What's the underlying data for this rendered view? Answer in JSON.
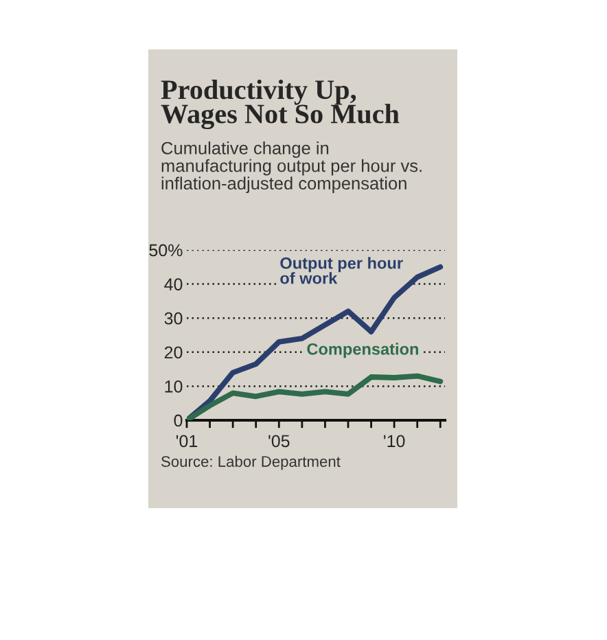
{
  "chart_data": {
    "type": "line",
    "title": "Productivity Up,\nWages Not So Much",
    "subtitle": "Cumulative change in\nmanufacturing output per hour vs.\ninflation-adjusted compensation",
    "annotations": [
      "Source: Labor Department"
    ],
    "x": [
      2001,
      2002,
      2003,
      2004,
      2005,
      2006,
      2007,
      2008,
      2009,
      2010,
      2011,
      2012
    ],
    "series": [
      {
        "name": "Output per hour\nof work",
        "color": "#2b3f6e",
        "values": [
          0,
          5.7,
          14,
          16.5,
          23,
          24,
          28,
          32,
          26,
          36,
          42,
          45
        ]
      },
      {
        "name": "Compensation",
        "color": "#2f6b4c",
        "values": [
          0,
          4.3,
          8,
          7,
          8.4,
          7.7,
          8.4,
          7.7,
          12.7,
          12.5,
          13,
          11.4
        ]
      }
    ],
    "xlim": [
      2001,
      2012.2
    ],
    "ylim": [
      0,
      50
    ],
    "xticks": [
      {
        "value": 2001,
        "label": "'01"
      },
      {
        "value": 2002,
        "label": null
      },
      {
        "value": 2003,
        "label": null
      },
      {
        "value": 2004,
        "label": null
      },
      {
        "value": 2005,
        "label": "'05"
      },
      {
        "value": 2006,
        "label": null
      },
      {
        "value": 2007,
        "label": null
      },
      {
        "value": 2008,
        "label": null
      },
      {
        "value": 2009,
        "label": null
      },
      {
        "value": 2010,
        "label": "'10"
      },
      {
        "value": 2011,
        "label": null
      },
      {
        "value": 2012,
        "label": null
      }
    ],
    "yticks": [
      0,
      10,
      20,
      30,
      40,
      {
        "value": 50,
        "label": "50%"
      }
    ],
    "grid": "y",
    "legend": false,
    "marker": "none",
    "line_style": "solid"
  }
}
